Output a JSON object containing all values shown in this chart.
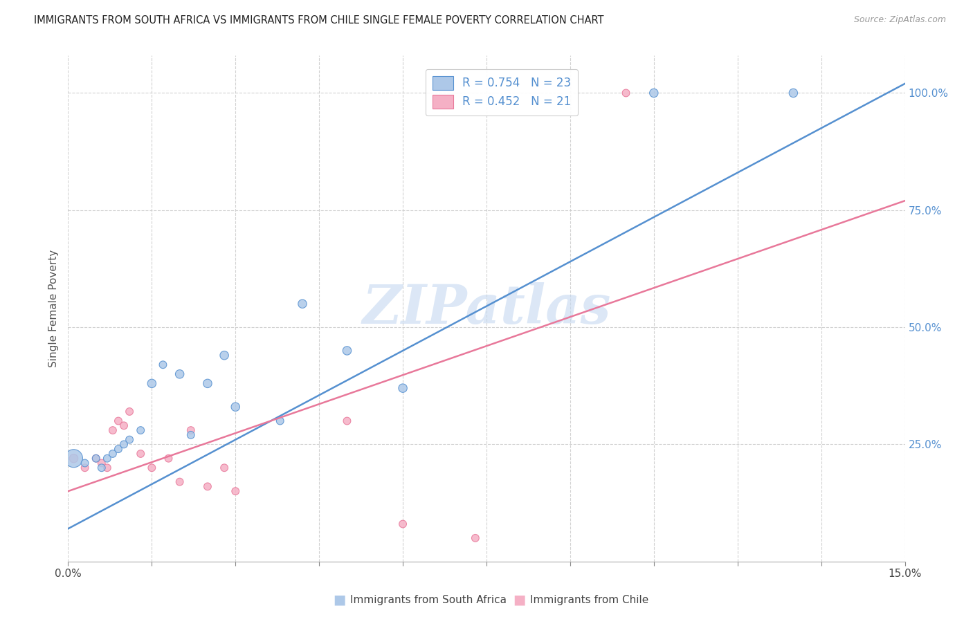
{
  "title": "IMMIGRANTS FROM SOUTH AFRICA VS IMMIGRANTS FROM CHILE SINGLE FEMALE POVERTY CORRELATION CHART",
  "source": "Source: ZipAtlas.com",
  "ylabel": "Single Female Poverty",
  "ytick_labels": [
    "100.0%",
    "75.0%",
    "50.0%",
    "25.0%"
  ],
  "ytick_values": [
    1.0,
    0.75,
    0.5,
    0.25
  ],
  "xmin": 0.0,
  "xmax": 0.15,
  "ymin": 0.0,
  "ymax": 1.08,
  "legend_R1": "R = 0.754",
  "legend_N1": "N = 23",
  "legend_R2": "R = 0.452",
  "legend_N2": "N = 21",
  "legend_label1": "Immigrants from South Africa",
  "legend_label2": "Immigrants from Chile",
  "color_blue": "#adc8e8",
  "color_pink": "#f5b0c5",
  "line_color_blue": "#5590d0",
  "line_color_pink": "#e8789a",
  "watermark_color": "#c5d8f0",
  "watermark_text": "ZIPatlas",
  "blue_line_x0": 0.0,
  "blue_line_y0": 0.07,
  "blue_line_x1": 0.15,
  "blue_line_y1": 1.02,
  "pink_line_x0": 0.0,
  "pink_line_y0": 0.15,
  "pink_line_x1": 0.15,
  "pink_line_y1": 0.77,
  "south_africa_x": [
    0.001,
    0.003,
    0.005,
    0.006,
    0.007,
    0.008,
    0.009,
    0.01,
    0.011,
    0.013,
    0.015,
    0.017,
    0.02,
    0.022,
    0.025,
    0.028,
    0.03,
    0.038,
    0.042,
    0.05,
    0.06,
    0.105,
    0.13
  ],
  "south_africa_y": [
    0.22,
    0.21,
    0.22,
    0.2,
    0.22,
    0.23,
    0.24,
    0.25,
    0.26,
    0.28,
    0.38,
    0.42,
    0.4,
    0.27,
    0.38,
    0.44,
    0.33,
    0.3,
    0.55,
    0.45,
    0.37,
    1.0,
    1.0
  ],
  "south_africa_sizes": [
    80,
    60,
    60,
    60,
    60,
    60,
    60,
    60,
    60,
    60,
    80,
    60,
    80,
    60,
    80,
    80,
    80,
    60,
    80,
    80,
    80,
    80,
    80
  ],
  "chile_x": [
    0.001,
    0.003,
    0.005,
    0.006,
    0.007,
    0.008,
    0.009,
    0.01,
    0.011,
    0.013,
    0.015,
    0.018,
    0.02,
    0.022,
    0.025,
    0.028,
    0.03,
    0.05,
    0.06,
    0.073,
    0.1
  ],
  "chile_y": [
    0.22,
    0.2,
    0.22,
    0.21,
    0.2,
    0.28,
    0.3,
    0.29,
    0.32,
    0.23,
    0.2,
    0.22,
    0.17,
    0.28,
    0.16,
    0.2,
    0.15,
    0.3,
    0.08,
    0.05,
    1.0
  ],
  "chile_sizes": [
    80,
    60,
    60,
    60,
    60,
    60,
    60,
    60,
    60,
    60,
    60,
    60,
    60,
    60,
    60,
    60,
    60,
    60,
    60,
    60,
    60
  ],
  "large_blue_dot_idx": 0,
  "large_blue_dot_size": 350
}
